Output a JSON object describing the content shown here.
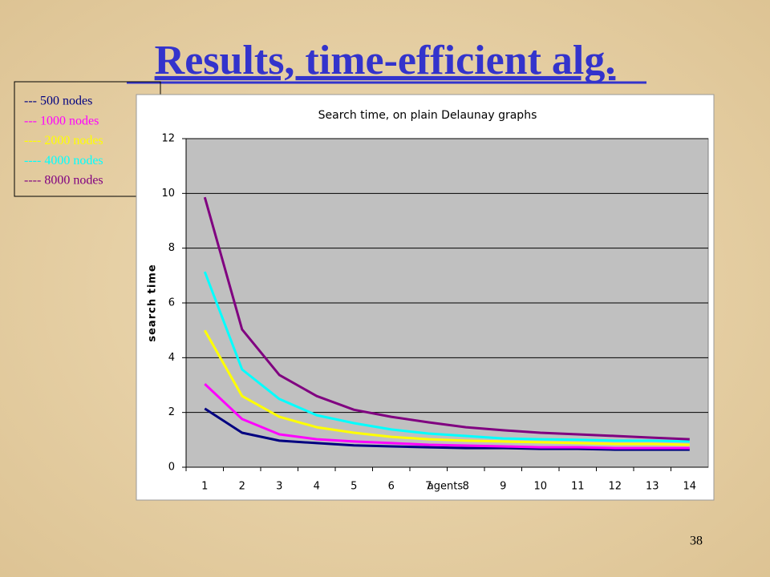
{
  "slide_title": "Results, time-efficient alg.",
  "page_number": "38",
  "chart_data": {
    "type": "line",
    "title": "Search time, on plain Delaunay graphs",
    "x_label": "agents",
    "y_label": "search time",
    "categories": [
      "1",
      "2",
      "3",
      "4",
      "5",
      "6",
      "7",
      "8",
      "9",
      "10",
      "11",
      "12",
      "13",
      "14"
    ],
    "ylim": [
      0,
      12
    ],
    "yticks": [
      0,
      2,
      4,
      6,
      8,
      10,
      12
    ],
    "grid": true,
    "series": [
      {
        "name": "--- 500 nodes",
        "color": "#000080",
        "values": [
          2.14,
          1.26,
          0.97,
          0.88,
          0.8,
          0.76,
          0.73,
          0.7,
          0.7,
          0.67,
          0.67,
          0.64,
          0.64,
          0.64
        ]
      },
      {
        "name": "--- 1000 nodes",
        "color": "#ff00ff",
        "values": [
          3.04,
          1.76,
          1.2,
          1.02,
          0.94,
          0.88,
          0.82,
          0.79,
          0.76,
          0.73,
          0.73,
          0.7,
          0.7,
          0.7
        ]
      },
      {
        "name": "---- 2000 nodes",
        "color": "#ffff00",
        "values": [
          5.0,
          2.6,
          1.84,
          1.46,
          1.26,
          1.11,
          1.02,
          0.97,
          0.94,
          0.91,
          0.88,
          0.85,
          0.85,
          0.82
        ]
      },
      {
        "name": "---- 4000 nodes",
        "color": "#00ffff",
        "values": [
          7.14,
          3.57,
          2.49,
          1.9,
          1.61,
          1.38,
          1.23,
          1.14,
          1.05,
          1.02,
          1.0,
          0.97,
          0.97,
          0.94
        ]
      },
      {
        "name": "---- 8000 nodes",
        "color": "#800080",
        "values": [
          9.86,
          5.03,
          3.37,
          2.6,
          2.1,
          1.84,
          1.64,
          1.46,
          1.35,
          1.26,
          1.2,
          1.14,
          1.08,
          1.02
        ]
      }
    ]
  }
}
